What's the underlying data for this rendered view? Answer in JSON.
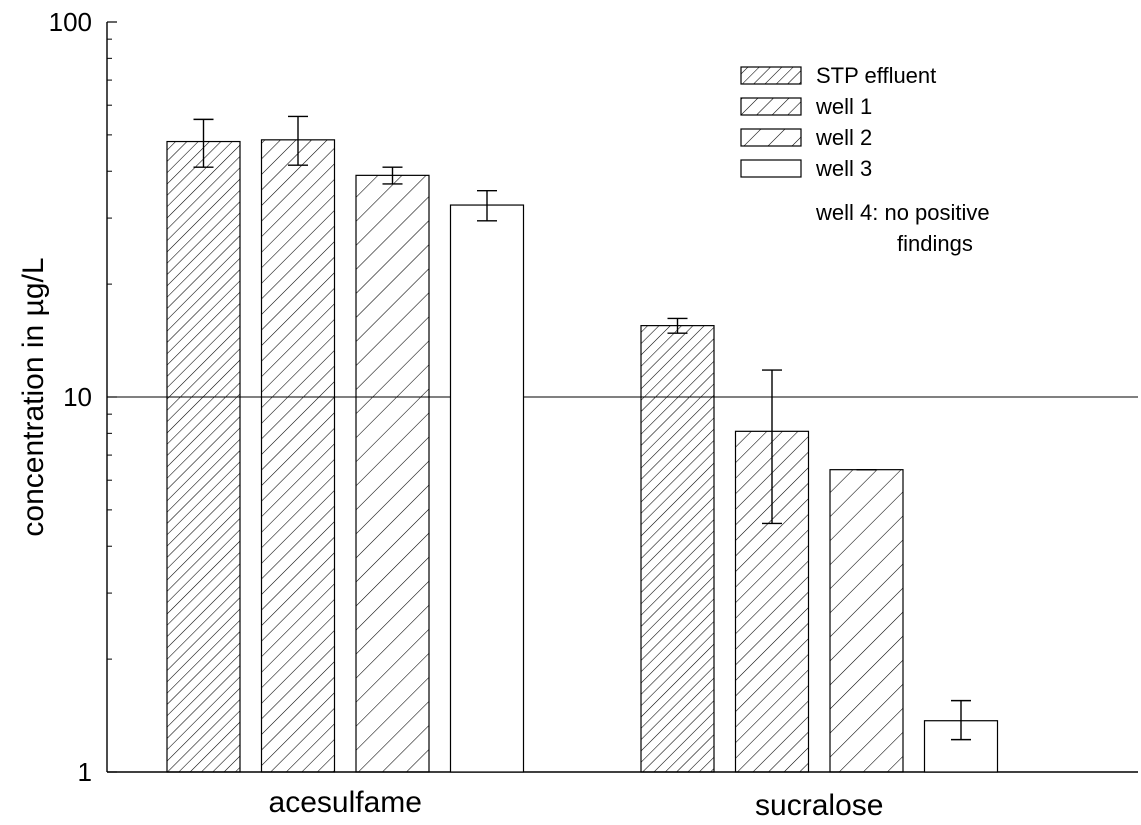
{
  "chart_data": {
    "type": "bar",
    "yscale": "log",
    "ylim": [
      1,
      100
    ],
    "yticks": [
      "1",
      "10",
      "100"
    ],
    "ylabel": "concentration in µg/L",
    "xlabel": "",
    "categories": [
      "acesulfame",
      "sucralose"
    ],
    "series": [
      {
        "name": "STP effluent",
        "pattern": "hatch-dense",
        "values": [
          48,
          15.5
        ],
        "err_low": [
          41,
          14.8
        ],
        "err_high": [
          55,
          16.2
        ]
      },
      {
        "name": "well 1",
        "pattern": "hatch-medium",
        "values": [
          48.5,
          8.1
        ],
        "err_low": [
          41.5,
          4.6
        ],
        "err_high": [
          56,
          11.8
        ]
      },
      {
        "name": "well 2",
        "pattern": "hatch-sparse",
        "values": [
          39,
          6.4
        ],
        "err_low": [
          37,
          6.4
        ],
        "err_high": [
          41,
          6.4
        ]
      },
      {
        "name": "well 3",
        "pattern": "none",
        "values": [
          32.5,
          1.37
        ],
        "err_low": [
          29.5,
          1.22
        ],
        "err_high": [
          35.5,
          1.55
        ]
      }
    ],
    "annotations": [
      "well 4: no positive",
      "findings"
    ],
    "gridlines": [
      10
    ]
  }
}
